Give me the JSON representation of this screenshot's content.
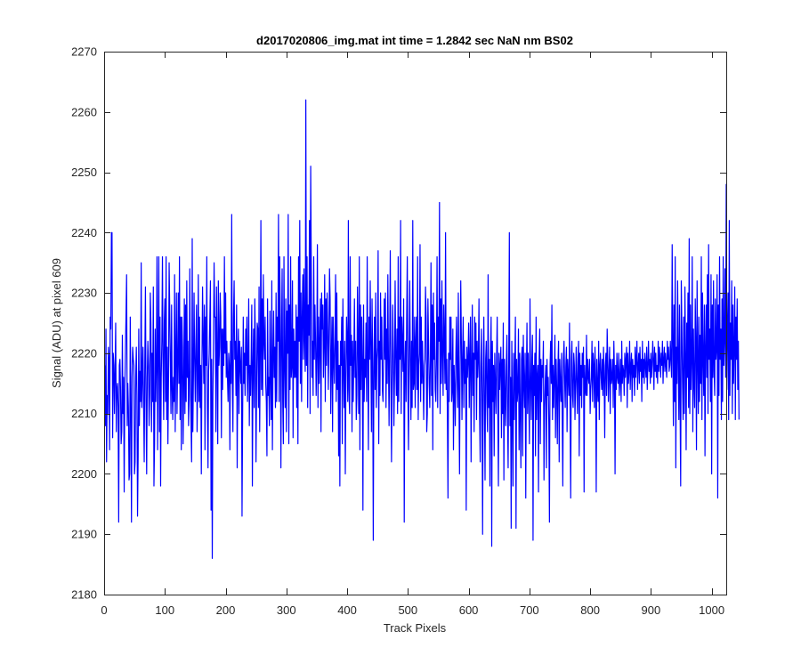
{
  "chart_data": {
    "type": "line",
    "title": "d2017020806_img.mat int time = 1.2842 sec  NaN nm BS02",
    "xlabel": "Track Pixels",
    "ylabel": "Signal (ADU) at pixel 609",
    "xlim": [
      0,
      1024
    ],
    "ylim": [
      2180,
      2270
    ],
    "xticks": [
      0,
      100,
      200,
      300,
      400,
      500,
      600,
      700,
      800,
      900,
      1000
    ],
    "yticks": [
      2180,
      2190,
      2200,
      2210,
      2220,
      2230,
      2240,
      2250,
      2260,
      2270
    ],
    "grid": false,
    "legend": "none",
    "series": [
      {
        "color": "#0000ff",
        "x_start": 1,
        "x_step": 1,
        "values": [
          2218,
          2208,
          2224,
          2202,
          2213,
          2210,
          2221,
          2219,
          2204,
          2226,
          2224,
          2240,
          2240,
          2206,
          2220,
          2218,
          2210,
          2217,
          2225,
          2207,
          2214,
          2215,
          2211,
          2192,
          2218,
          2219,
          2214,
          2205,
          2207,
          2223,
          2210,
          2216,
          2197,
          2214,
          2220,
          2226,
          2233,
          2208,
          2215,
          2211,
          2199,
          2200,
          2226,
          2211,
          2192,
          2216,
          2221,
          2219,
          2218,
          2200,
          2202,
          2216,
          2221,
          2213,
          2193,
          2203,
          2224,
          2208,
          2217,
          2212,
          2235,
          2211,
          2216,
          2221,
          2211,
          2202,
          2219,
          2231,
          2212,
          2200,
          2216,
          2222,
          2218,
          2208,
          2213,
          2230,
          2225,
          2207,
          2220,
          2212,
          2231,
          2198,
          2205,
          2224,
          2212,
          2218,
          2236,
          2204,
          2220,
          2236,
          2207,
          2226,
          2198,
          2216,
          2222,
          2236,
          2218,
          2209,
          2225,
          2229,
          2212,
          2236,
          2209,
          2221,
          2205,
          2216,
          2235,
          2227,
          2218,
          2210,
          2228,
          2214,
          2209,
          2216,
          2212,
          2233,
          2207,
          2220,
          2230,
          2210,
          2218,
          2230,
          2215,
          2236,
          2209,
          2226,
          2204,
          2226,
          2221,
          2205,
          2215,
          2229,
          2210,
          2228,
          2212,
          2232,
          2216,
          2222,
          2208,
          2213,
          2234,
          2216,
          2209,
          2202,
          2239,
          2207,
          2216,
          2230,
          2219,
          2212,
          2221,
          2228,
          2207,
          2215,
          2233,
          2212,
          2226,
          2211,
          2218,
          2200,
          2218,
          2231,
          2222,
          2215,
          2228,
          2204,
          2226,
          2218,
          2236,
          2211,
          2201,
          2217,
          2220,
          2226,
          2232,
          2194,
          2219,
          2186,
          2213,
          2222,
          2235,
          2226,
          2226,
          2207,
          2231,
          2220,
          2205,
          2232,
          2218,
          2221,
          2230,
          2226,
          2206,
          2224,
          2214,
          2224,
          2218,
          2236,
          2220,
          2230,
          2216,
          2222,
          2216,
          2212,
          2220,
          2218,
          2204,
          2222,
          2215,
          2243,
          2216,
          2207,
          2226,
          2232,
          2219,
          2222,
          2213,
          2228,
          2201,
          2219,
          2224,
          2210,
          2222,
          2218,
          2215,
          2221,
          2193,
          2210,
          2226,
          2215,
          2220,
          2213,
          2224,
          2218,
          2226,
          2212,
          2218,
          2229,
          2208,
          2218,
          2213,
          2219,
          2228,
          2198,
          2218,
          2224,
          2211,
          2229,
          2222,
          2202,
          2215,
          2225,
          2224,
          2211,
          2231,
          2207,
          2220,
          2242,
          2214,
          2229,
          2213,
          2233,
          2222,
          2219,
          2226,
          2215,
          2212,
          2203,
          2229,
          2213,
          2216,
          2208,
          2227,
          2216,
          2209,
          2232,
          2204,
          2219,
          2227,
          2216,
          2221,
          2211,
          2230,
          2212,
          2226,
          2222,
          2243,
          2212,
          2236,
          2226,
          2201,
          2222,
          2234,
          2212,
          2205,
          2236,
          2218,
          2211,
          2229,
          2207,
          2227,
          2220,
          2243,
          2205,
          2228,
          2214,
          2236,
          2216,
          2218,
          2232,
          2206,
          2224,
          2216,
          2222,
          2216,
          2228,
          2211,
          2226,
          2205,
          2236,
          2222,
          2242,
          2215,
          2230,
          2212,
          2226,
          2233,
          2219,
          2234,
          2222,
          2217,
          2262,
          2218,
          2236,
          2211,
          2228,
          2223,
          2242,
          2210,
          2251,
          2234,
          2216,
          2222,
          2213,
          2236,
          2219,
          2228,
          2222,
          2213,
          2220,
          2238,
          2211,
          2226,
          2215,
          2222,
          2229,
          2207,
          2230,
          2224,
          2228,
          2216,
          2222,
          2233,
          2212,
          2229,
          2218,
          2230,
          2224,
          2214,
          2222,
          2234,
          2229,
          2210,
          2219,
          2226,
          2207,
          2226,
          2219,
          2215,
          2222,
          2233,
          2212,
          2230,
          2214,
          2222,
          2203,
          2218,
          2198,
          2222,
          2218,
          2226,
          2205,
          2229,
          2218,
          2211,
          2222,
          2200,
          2216,
          2226,
          2222,
          2212,
          2242,
          2214,
          2210,
          2236,
          2218,
          2223,
          2207,
          2222,
          2212,
          2219,
          2229,
          2216,
          2222,
          2209,
          2213,
          2231,
          2222,
          2210,
          2236,
          2204,
          2228,
          2214,
          2226,
          2219,
          2194,
          2228,
          2212,
          2219,
          2216,
          2225,
          2212,
          2236,
          2220,
          2204,
          2226,
          2219,
          2232,
          2221,
          2207,
          2229,
          2219,
          2189,
          2217,
          2226,
          2214,
          2230,
          2211,
          2219,
          2221,
          2237,
          2205,
          2222,
          2213,
          2230,
          2219,
          2226,
          2214,
          2212,
          2220,
          2229,
          2219,
          2230,
          2211,
          2224,
          2215,
          2233,
          2219,
          2208,
          2222,
          2237,
          2216,
          2202,
          2216,
          2228,
          2220,
          2208,
          2216,
          2232,
          2219,
          2213,
          2224,
          2210,
          2236,
          2212,
          2226,
          2219,
          2242,
          2210,
          2226,
          2222,
          2217,
          2229,
          2192,
          2218,
          2222,
          2212,
          2226,
          2236,
          2214,
          2204,
          2220,
          2232,
          2219,
          2209,
          2222,
          2211,
          2242,
          2214,
          2215,
          2226,
          2211,
          2222,
          2226,
          2214,
          2236,
          2209,
          2218,
          2220,
          2238,
          2212,
          2226,
          2215,
          2222,
          2216,
          2209,
          2218,
          2219,
          2231,
          2226,
          2207,
          2210,
          2229,
          2222,
          2215,
          2211,
          2219,
          2235,
          2213,
          2228,
          2204,
          2230,
          2219,
          2225,
          2214,
          2212,
          2219,
          2236,
          2211,
          2226,
          2222,
          2245,
          2210,
          2229,
          2215,
          2232,
          2220,
          2213,
          2228,
          2222,
          2215,
          2240,
          2214,
          2219,
          2210,
          2196,
          2220,
          2212,
          2226,
          2219,
          2226,
          2212,
          2214,
          2224,
          2204,
          2218,
          2214,
          2208,
          2220,
          2226,
          2216,
          2211,
          2230,
          2214,
          2200,
          2218,
          2232,
          2222,
          2209,
          2219,
          2226,
          2211,
          2222,
          2215,
          2219,
          2194,
          2221,
          2216,
          2219,
          2225,
          2211,
          2219,
          2226,
          2202,
          2218,
          2228,
          2213,
          2220,
          2207,
          2226,
          2219,
          2225,
          2209,
          2222,
          2216,
          2219,
          2229,
          2210,
          2202,
          2218,
          2224,
          2213,
          2190,
          2216,
          2226,
          2212,
          2199,
          2219,
          2222,
          2212,
          2207,
          2233,
          2211,
          2219,
          2198,
          2220,
          2226,
          2188,
          2222,
          2212,
          2218,
          2203,
          2220,
          2215,
          2210,
          2219,
          2226,
          2211,
          2198,
          2220,
          2214,
          2218,
          2221,
          2206,
          2219,
          2210,
          2225,
          2199,
          2219,
          2213,
          2208,
          2218,
          2223,
          2210,
          2201,
          2219,
          2240,
          2208,
          2216,
          2191,
          2222,
          2211,
          2198,
          2220,
          2209,
          2218,
          2226,
          2191,
          2219,
          2212,
          2214,
          2224,
          2204,
          2220,
          2210,
          2201,
          2219,
          2221,
          2203,
          2223,
          2215,
          2211,
          2220,
          2196,
          2216,
          2225,
          2210,
          2220,
          2213,
          2205,
          2229,
          2215,
          2209,
          2219,
          2223,
          2189,
          2218,
          2213,
          2220,
          2203,
          2226,
          2209,
          2216,
          2218,
          2197,
          2219,
          2224,
          2205,
          2219,
          2212,
          2218,
          2216,
          2222,
          2199,
          2211,
          2215,
          2218,
          2201,
          2219,
          2213,
          2216,
          2208,
          2192,
          2218,
          2222,
          2215,
          2228,
          2209,
          2218,
          2211,
          2216,
          2223,
          2206,
          2219,
          2214,
          2205,
          2218,
          2222,
          2202,
          2219,
          2215,
          2212,
          2220,
          2210,
          2198,
          2219,
          2222,
          2216,
          2211,
          2218,
          2221,
          2207,
          2219,
          2216,
          2213,
          2225,
          2210,
          2196,
          2219,
          2222,
          2213,
          2211,
          2220,
          2218,
          2209,
          2215,
          2221,
          2215,
          2210,
          2219,
          2222,
          2203,
          2220,
          2213,
          2218,
          2211,
          2220,
          2216,
          2221,
          2197,
          2218,
          2214,
          2213,
          2223,
          2213,
          2219,
          2216,
          2215,
          2219,
          2210,
          2214,
          2216,
          2222,
          2212,
          2220,
          2218,
          2211,
          2221,
          2216,
          2197,
          2219,
          2214,
          2212,
          2222,
          2209,
          2218,
          2220,
          2216,
          2214,
          2219,
          2213,
          2221,
          2216,
          2206,
          2218,
          2220,
          2213,
          2224,
          2219,
          2212,
          2217,
          2221,
          2210,
          2219,
          2215,
          2216,
          2219,
          2211,
          2222,
          2217,
          2200,
          2218,
          2214,
          2220,
          2216,
          2215,
          2220,
          2213,
          2216,
          2219,
          2212,
          2222,
          2215,
          2218,
          2217,
          2213,
          2220,
          2216,
          2219,
          2221,
          2211,
          2220,
          2215,
          2217,
          2222,
          2214,
          2218,
          2220,
          2212,
          2219,
          2216,
          2218,
          2213,
          2221,
          2216,
          2219,
          2222,
          2214,
          2218,
          2220,
          2215,
          2221,
          2217,
          2219,
          2212,
          2222,
          2216,
          2219,
          2215,
          2220,
          2218,
          2216,
          2221,
          2214,
          2218,
          2222,
          2217,
          2219,
          2215,
          2220,
          2216,
          2218,
          2222,
          2219,
          2214,
          2221,
          2217,
          2220,
          2216,
          2218,
          2215,
          2222,
          2217,
          2221,
          2219,
          2216,
          2220,
          2218,
          2222,
          2215,
          2219,
          2221,
          2217,
          2220,
          2218,
          2216,
          2222,
          2219,
          2221,
          2217,
          2218,
          2222,
          2219,
          2216,
          2238,
          2222,
          2208,
          2228,
          2212,
          2236,
          2201,
          2221,
          2215,
          2232,
          2219,
          2209,
          2228,
          2212,
          2198,
          2232,
          2224,
          2215,
          2209,
          2226,
          2210,
          2231,
          2220,
          2204,
          2225,
          2216,
          2230,
          2211,
          2239,
          2210,
          2228,
          2214,
          2219,
          2236,
          2207,
          2224,
          2215,
          2211,
          2229,
          2222,
          2204,
          2232,
          2219,
          2210,
          2226,
          2212,
          2223,
          2215,
          2236,
          2209,
          2230,
          2219,
          2213,
          2228,
          2203,
          2221,
          2228,
          2216,
          2233,
          2210,
          2238,
          2219,
          2224,
          2212,
          2233,
          2200,
          2228,
          2216,
          2232,
          2217,
          2213,
          2229,
          2219,
          2221,
          2233,
          2196,
          2228,
          2213,
          2236,
          2219,
          2224,
          2209,
          2229,
          2212,
          2236,
          2218,
          2222,
          2234,
          2216,
          2248,
          2214,
          2224,
          2230,
          2209,
          2242,
          2213,
          2225,
          2219,
          2232,
          2210,
          2228,
          2215,
          2221,
          2231,
          2209,
          2226,
          2219,
          2229,
          2214,
          2222,
          2209
        ]
      }
    ]
  }
}
